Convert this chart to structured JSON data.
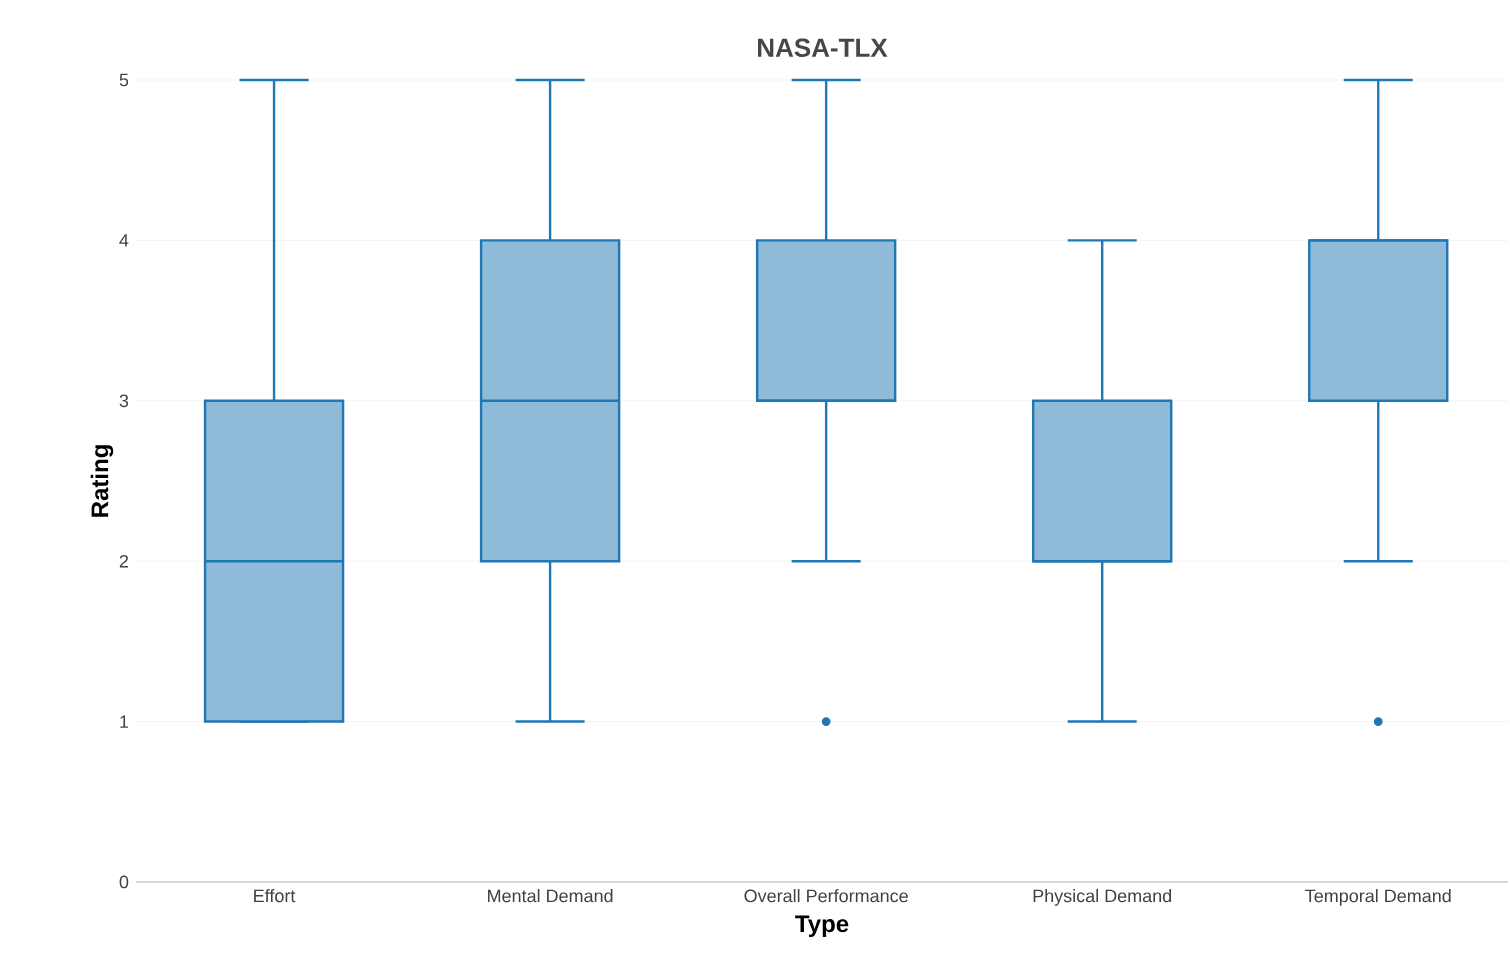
{
  "chart_data": {
    "type": "box",
    "title": "NASA-TLX",
    "xlabel": "Type",
    "ylabel": "Rating",
    "categories": [
      "Effort",
      "Mental Demand",
      "Overall Performance",
      "Physical Demand",
      "Temporal Demand"
    ],
    "color": "#1f77b4",
    "boxes": [
      {
        "low": 1,
        "q1": 1,
        "median": 2,
        "q3": 3,
        "high": 5
      },
      {
        "low": 1,
        "q1": 2,
        "median": 3,
        "q3": 4,
        "high": 5
      },
      {
        "low": 2,
        "q1": 3,
        "median": 3,
        "q3": 4,
        "high": 5,
        "outliers": [
          1
        ]
      },
      {
        "low": 1,
        "q1": 2,
        "median": 2,
        "q3": 3,
        "high": 4
      },
      {
        "low": 2,
        "q1": 3,
        "median": 4,
        "q3": 4,
        "high": 5,
        "outliers": [
          1
        ]
      }
    ],
    "ylim": [
      0,
      5
    ],
    "yticks": [
      0,
      1,
      2,
      3,
      4,
      5
    ],
    "grid": "y"
  }
}
